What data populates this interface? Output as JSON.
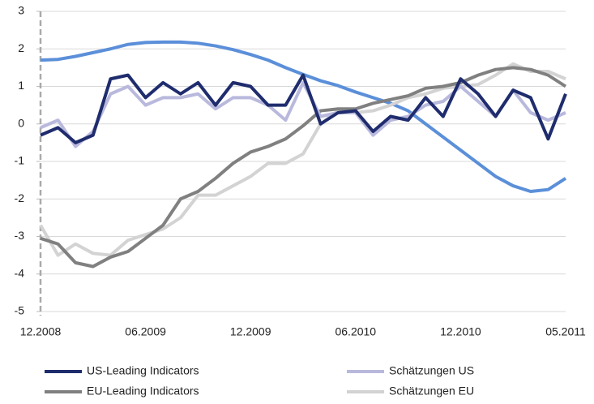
{
  "chart_data": {
    "type": "line",
    "categories": [
      "12.2008",
      null,
      null,
      null,
      null,
      null,
      "06.2009",
      null,
      null,
      null,
      null,
      null,
      "12.2009",
      null,
      null,
      null,
      null,
      null,
      "06.2010",
      null,
      null,
      null,
      null,
      null,
      "12.2010",
      null,
      null,
      null,
      null,
      null,
      "05.2011"
    ],
    "series": [
      {
        "name": "US-Leading Indicators",
        "color": "#1f2c6d",
        "values": [
          -0.3,
          -0.1,
          -0.5,
          -0.3,
          1.2,
          1.3,
          0.7,
          1.1,
          0.8,
          1.1,
          0.5,
          1.1,
          1.0,
          0.5,
          0.5,
          1.3,
          0.0,
          0.3,
          0.35,
          -0.2,
          0.2,
          0.1,
          0.7,
          0.2,
          1.2,
          0.8,
          0.2,
          0.9,
          0.7,
          -0.4,
          0.8
        ]
      },
      {
        "name": "Schätzungen US",
        "color": "#b9b9dd",
        "values": [
          -0.1,
          0.1,
          -0.6,
          -0.2,
          0.8,
          1.0,
          0.5,
          0.7,
          0.7,
          0.8,
          0.4,
          0.7,
          0.7,
          0.5,
          0.1,
          1.1,
          0.2,
          0.3,
          0.3,
          -0.3,
          0.1,
          0.2,
          0.5,
          0.6,
          1.0,
          0.6,
          0.2,
          0.9,
          0.3,
          0.1,
          0.3
        ]
      },
      {
        "name": "EU-Leading Indicators",
        "color": "#808080",
        "values": [
          -3.05,
          -3.2,
          -3.7,
          -3.8,
          -3.55,
          -3.4,
          -3.05,
          -2.7,
          -2.0,
          -1.8,
          -1.45,
          -1.05,
          -0.75,
          -0.6,
          -0.4,
          -0.05,
          0.35,
          0.4,
          0.4,
          0.55,
          0.65,
          0.75,
          0.95,
          1.0,
          1.1,
          1.3,
          1.45,
          1.5,
          1.45,
          1.3,
          1.0
        ]
      },
      {
        "name": "Schätzungen EU",
        "color": "#d3d3d3",
        "values": [
          -2.7,
          -3.5,
          -3.2,
          -3.45,
          -3.5,
          -3.1,
          -2.95,
          -2.8,
          -2.5,
          -1.9,
          -1.9,
          -1.65,
          -1.4,
          -1.05,
          -1.05,
          -0.8,
          0.0,
          0.35,
          0.3,
          0.35,
          0.5,
          0.7,
          0.8,
          0.95,
          1.0,
          1.05,
          1.3,
          1.6,
          1.4,
          1.4,
          1.2
        ]
      },
      {
        "color": "#5b8fd9",
        "values": [
          1.7,
          1.72,
          1.8,
          1.9,
          2.0,
          2.12,
          2.17,
          2.18,
          2.18,
          2.15,
          2.08,
          1.98,
          1.85,
          1.7,
          1.5,
          1.32,
          1.15,
          1.02,
          0.85,
          0.7,
          0.55,
          0.35,
          0.0,
          -0.35,
          -0.7,
          -1.05,
          -1.4,
          -1.65,
          -1.8,
          -1.75,
          -1.45
        ]
      }
    ],
    "ylim": [
      -5,
      3
    ],
    "yticks": [
      -5,
      -4,
      -3,
      -2,
      -1,
      0,
      1,
      2,
      3
    ],
    "grid": true
  }
}
